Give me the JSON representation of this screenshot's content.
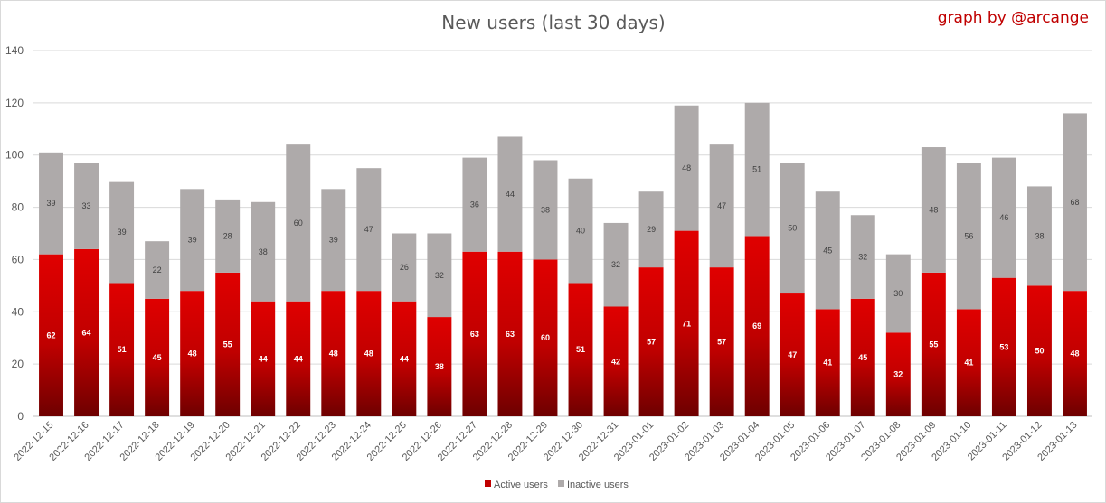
{
  "chart_data": {
    "type": "bar",
    "stacked": true,
    "title": "New users (last 30 days)",
    "credit": "graph by @arcange",
    "categories": [
      "2022-12-15",
      "2022-12-16",
      "2022-12-17",
      "2022-12-18",
      "2022-12-19",
      "2022-12-20",
      "2022-12-21",
      "2022-12-22",
      "2022-12-23",
      "2022-12-24",
      "2022-12-25",
      "2022-12-26",
      "2022-12-27",
      "2022-12-28",
      "2022-12-29",
      "2022-12-30",
      "2022-12-31",
      "2023-01-01",
      "2023-01-02",
      "2023-01-03",
      "2023-01-04",
      "2023-01-05",
      "2023-01-06",
      "2023-01-07",
      "2023-01-08",
      "2023-01-09",
      "2023-01-10",
      "2023-01-11",
      "2023-01-12",
      "2023-01-13"
    ],
    "series": [
      {
        "name": "Active users",
        "color": "#c00000",
        "values": [
          62,
          64,
          51,
          45,
          48,
          55,
          44,
          44,
          48,
          48,
          44,
          38,
          63,
          63,
          60,
          51,
          42,
          57,
          71,
          57,
          69,
          47,
          41,
          45,
          32,
          55,
          41,
          53,
          50,
          48
        ]
      },
      {
        "name": "Inactive users",
        "color": "#aeaaaa",
        "values": [
          39,
          33,
          39,
          22,
          39,
          28,
          38,
          60,
          39,
          47,
          26,
          32,
          36,
          44,
          38,
          40,
          32,
          29,
          48,
          47,
          51,
          50,
          45,
          32,
          30,
          48,
          56,
          46,
          38,
          68
        ]
      }
    ],
    "ylim": [
      0,
      140
    ],
    "yticks": [
      "0",
      "20",
      "40",
      "60",
      "80",
      "100",
      "120",
      "140"
    ],
    "grid": true,
    "legend_position": "bottom"
  }
}
